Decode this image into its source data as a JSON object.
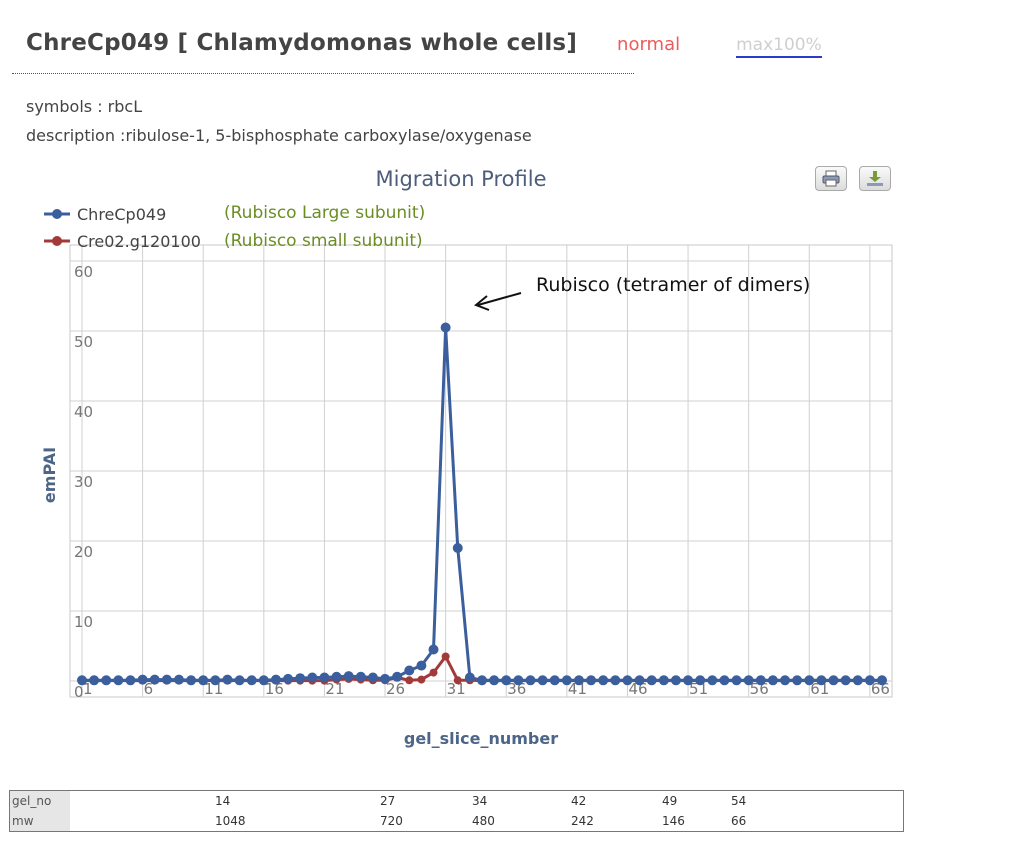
{
  "header": {
    "title": "ChreCp049 [ Chlamydomonas whole cells]",
    "mode_normal": "normal",
    "mode_max": "max100%"
  },
  "meta": {
    "symbols": "symbols : rbcL",
    "description": "description :ribulose-1, 5-bisphosphate carboxylase/oxygenase"
  },
  "toolbar": {
    "print_icon": "printer-icon",
    "export_icon": "download-icon"
  },
  "colors": {
    "series1": "#3a5f9c",
    "series2": "#a33a3a",
    "annotation_green": "#6b8e23"
  },
  "chart_data": {
    "type": "line",
    "title": "Migration Profile",
    "xlabel": "gel_slice_number",
    "ylabel": "emPAI",
    "xlim": [
      1,
      67
    ],
    "ylim": [
      0,
      60
    ],
    "x_ticks": [
      1,
      6,
      11,
      16,
      21,
      26,
      31,
      36,
      41,
      46,
      51,
      56,
      61,
      66
    ],
    "y_ticks": [
      0,
      10,
      20,
      30,
      40,
      50,
      60
    ],
    "grid": true,
    "legend_position": "top-left",
    "x": [
      1,
      2,
      3,
      4,
      5,
      6,
      7,
      8,
      9,
      10,
      11,
      12,
      13,
      14,
      15,
      16,
      17,
      18,
      19,
      20,
      21,
      22,
      23,
      24,
      25,
      26,
      27,
      28,
      29,
      30,
      31,
      32,
      33,
      34,
      35,
      36,
      37,
      38,
      39,
      40,
      41,
      42,
      43,
      44,
      45,
      46,
      47,
      48,
      49,
      50,
      51,
      52,
      53,
      54,
      55,
      56,
      57,
      58,
      59,
      60,
      61,
      62,
      63,
      64,
      65,
      66,
      67
    ],
    "series": [
      {
        "name": "ChreCp049",
        "values": [
          0.1,
          0.1,
          0.1,
          0.1,
          0.1,
          0.2,
          0.2,
          0.2,
          0.2,
          0.1,
          0.1,
          0.1,
          0.2,
          0.1,
          0.1,
          0.1,
          0.2,
          0.3,
          0.4,
          0.5,
          0.5,
          0.6,
          0.7,
          0.6,
          0.5,
          0.3,
          0.6,
          1.5,
          2.2,
          4.5,
          50.5,
          19,
          0.5,
          0.1,
          0.1,
          0.1,
          0.1,
          0.1,
          0.1,
          0.1,
          0.1,
          0.1,
          0.1,
          0.1,
          0.1,
          0.1,
          0.1,
          0.1,
          0.1,
          0.1,
          0.1,
          0.1,
          0.1,
          0.1,
          0.1,
          0.1,
          0.1,
          0.1,
          0.1,
          0.1,
          0.1,
          0.1,
          0.1,
          0.1,
          0.1,
          0.1,
          0.1
        ]
      },
      {
        "name": "Cre02.g120100",
        "values": [
          0.05,
          0.05,
          0.05,
          0.05,
          0.05,
          0.05,
          0.05,
          0.05,
          0.05,
          0.05,
          0.05,
          0.05,
          0.05,
          0.05,
          0.05,
          0.05,
          0.05,
          0.05,
          0.05,
          0.05,
          0.05,
          0.2,
          0.3,
          0.2,
          0.1,
          0.1,
          0.5,
          0.1,
          0.2,
          1.2,
          3.5,
          0.1,
          0.1,
          0.05,
          0.05,
          0.05,
          0.05,
          0.05,
          0.05,
          0.05,
          0.05,
          0.05,
          0.05,
          0.05,
          0.05,
          0.05,
          0.05,
          0.05,
          0.05,
          0.05,
          0.05,
          0.05,
          0.05,
          0.05,
          0.05,
          0.05,
          0.05,
          0.05,
          0.05,
          0.05,
          0.05,
          0.05,
          0.05,
          0.05,
          0.05,
          0.05,
          0.05
        ]
      }
    ],
    "annotations": [
      {
        "text": "(Rubisco Large subunit)",
        "series": "ChreCp049"
      },
      {
        "text": "(Rubisco small subunit)",
        "series": "Cre02.g120100"
      },
      {
        "text": "Rubisco (tetramer of dimers)",
        "x": 31,
        "y": 50.5
      }
    ]
  },
  "gel_table": {
    "row_gel_no": {
      "label": "gel_no",
      "values": [
        "14",
        "27",
        "34",
        "42",
        "49",
        "54"
      ]
    },
    "row_mw": {
      "label": "mw",
      "values": [
        "1048",
        "720",
        "480",
        "242",
        "146",
        "66"
      ]
    }
  }
}
